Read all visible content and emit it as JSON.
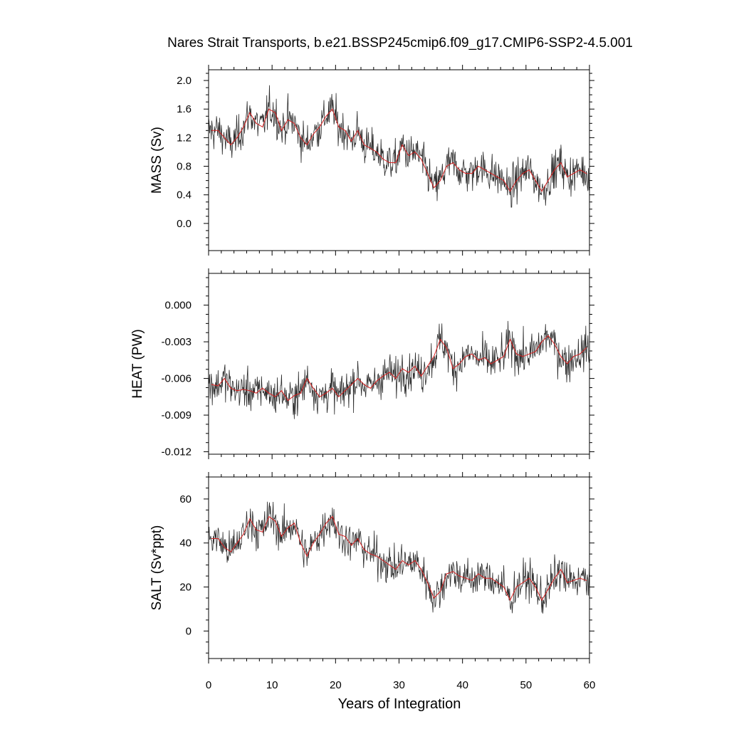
{
  "title": "Nares Strait Transports, b.e21.BSSP245cmip6.f09_g17.CMIP6-SSP2-4.5.001",
  "xlabel": "Years of Integration",
  "chart_data": [
    {
      "type": "line",
      "ylabel": "MASS (Sv)",
      "xlim": [
        0,
        60
      ],
      "ylim": [
        -0.38,
        2.15
      ],
      "xticks": [
        0,
        10,
        20,
        30,
        40,
        50,
        60
      ],
      "yticks": [
        0.0,
        0.4,
        0.8,
        1.2,
        1.6,
        2.0
      ],
      "ytick_labels": [
        "0.0",
        "0.4",
        "0.8",
        "1.2",
        "1.6",
        "2.0"
      ],
      "colors": {
        "monthly": "#2a2a2a",
        "annual": "#d62020"
      },
      "series": [
        {
          "x": [
            0.5,
            1.5,
            2.5,
            3.5,
            4.5,
            5.5,
            6.5,
            7.5,
            8.5,
            9.5,
            10.5,
            11.5,
            12.5,
            13.5,
            14.5,
            15.5,
            16.5,
            17.5,
            18.5,
            19.5,
            20.5,
            21.5,
            22.5,
            23.5,
            24.5,
            25.5,
            26.5,
            27.5,
            28.5,
            29.5,
            30.5,
            31.5,
            32.5,
            33.5,
            34.5,
            35.5,
            36.5,
            37.5,
            38.5,
            39.5,
            40.5,
            41.5,
            42.5,
            43.5,
            44.5,
            45.5,
            46.5,
            47.5,
            48.5,
            49.5,
            50.5,
            51.5,
            52.5,
            53.5,
            54.5,
            55.5,
            56.5,
            57.5,
            58.5,
            59.5
          ],
          "values": [
            1.3,
            1.3,
            1.2,
            1.1,
            1.2,
            1.35,
            1.55,
            1.4,
            1.35,
            1.6,
            1.55,
            1.3,
            1.45,
            1.4,
            1.2,
            1.1,
            1.25,
            1.35,
            1.5,
            1.6,
            1.35,
            1.3,
            1.15,
            1.3,
            1.1,
            1.05,
            1.0,
            0.9,
            0.85,
            0.85,
            1.1,
            0.95,
            1.0,
            0.9,
            0.7,
            0.5,
            0.6,
            0.8,
            0.85,
            0.75,
            0.7,
            0.7,
            0.8,
            0.75,
            0.7,
            0.65,
            0.6,
            0.45,
            0.6,
            0.7,
            0.75,
            0.6,
            0.45,
            0.6,
            0.75,
            0.85,
            0.65,
            0.7,
            0.75,
            0.7
          ]
        }
      ]
    },
    {
      "type": "line",
      "ylabel": "HEAT (PW)",
      "xlim": [
        0,
        60
      ],
      "ylim": [
        -0.0122,
        0.0026
      ],
      "xticks": [
        0,
        10,
        20,
        30,
        40,
        50,
        60
      ],
      "yticks": [
        -0.012,
        -0.009,
        -0.006,
        -0.003,
        0.0
      ],
      "ytick_labels": [
        "-0.012",
        "-0.009",
        "-0.006",
        "-0.003",
        "0.000"
      ],
      "colors": {
        "monthly": "#2a2a2a",
        "annual": "#d62020"
      },
      "series": [
        {
          "x": [
            0.5,
            1.5,
            2.5,
            3.5,
            4.5,
            5.5,
            6.5,
            7.5,
            8.5,
            9.5,
            10.5,
            11.5,
            12.5,
            13.5,
            14.5,
            15.5,
            16.5,
            17.5,
            18.5,
            19.5,
            20.5,
            21.5,
            22.5,
            23.5,
            24.5,
            25.5,
            26.5,
            27.5,
            28.5,
            29.5,
            30.5,
            31.5,
            32.5,
            33.5,
            34.5,
            35.5,
            36.5,
            37.5,
            38.5,
            39.5,
            40.5,
            41.5,
            42.5,
            43.5,
            44.5,
            45.5,
            46.5,
            47.5,
            48.5,
            49.5,
            50.5,
            51.5,
            52.5,
            53.5,
            54.5,
            55.5,
            56.5,
            57.5,
            58.5,
            59.5
          ],
          "values": [
            -0.0065,
            -0.0066,
            -0.006,
            -0.0068,
            -0.007,
            -0.0069,
            -0.007,
            -0.0072,
            -0.0068,
            -0.0072,
            -0.0075,
            -0.007,
            -0.0078,
            -0.0074,
            -0.0072,
            -0.006,
            -0.0068,
            -0.0075,
            -0.0072,
            -0.0068,
            -0.0075,
            -0.007,
            -0.0065,
            -0.006,
            -0.0065,
            -0.0068,
            -0.0062,
            -0.0058,
            -0.0055,
            -0.006,
            -0.0052,
            -0.0055,
            -0.005,
            -0.0058,
            -0.005,
            -0.0042,
            -0.0028,
            -0.0035,
            -0.0052,
            -0.0048,
            -0.0042,
            -0.004,
            -0.0045,
            -0.0043,
            -0.0048,
            -0.0045,
            -0.0042,
            -0.0028,
            -0.004,
            -0.0042,
            -0.004,
            -0.0038,
            -0.003,
            -0.0025,
            -0.0032,
            -0.0042,
            -0.0048,
            -0.0042,
            -0.004,
            -0.0035
          ]
        }
      ]
    },
    {
      "type": "line",
      "ylabel": "SALT (Sv*ppt)",
      "xlim": [
        0,
        60
      ],
      "ylim": [
        -12.5,
        70
      ],
      "xticks": [
        0,
        10,
        20,
        30,
        40,
        50,
        60
      ],
      "yticks": [
        0,
        20,
        40,
        60
      ],
      "ytick_labels": [
        "0",
        "20",
        "40",
        "60"
      ],
      "xtick_labels": [
        "0",
        "10",
        "20",
        "30",
        "40",
        "50",
        "60"
      ],
      "colors": {
        "monthly": "#2a2a2a",
        "annual": "#d62020"
      },
      "series": [
        {
          "x": [
            0.5,
            1.5,
            2.5,
            3.5,
            4.5,
            5.5,
            6.5,
            7.5,
            8.5,
            9.5,
            10.5,
            11.5,
            12.5,
            13.5,
            14.5,
            15.5,
            16.5,
            17.5,
            18.5,
            19.5,
            20.5,
            21.5,
            22.5,
            23.5,
            24.5,
            25.5,
            26.5,
            27.5,
            28.5,
            29.5,
            30.5,
            31.5,
            32.5,
            33.5,
            34.5,
            35.5,
            36.5,
            37.5,
            38.5,
            39.5,
            40.5,
            41.5,
            42.5,
            43.5,
            44.5,
            45.5,
            46.5,
            47.5,
            48.5,
            49.5,
            50.5,
            51.5,
            52.5,
            53.5,
            54.5,
            55.5,
            56.5,
            57.5,
            58.5,
            59.5
          ],
          "values": [
            42,
            42,
            38,
            36,
            40,
            44,
            51,
            46,
            45,
            52,
            50,
            43,
            47,
            49,
            40,
            34,
            40,
            44,
            49,
            52,
            44,
            43,
            39,
            42,
            37,
            35,
            34,
            32,
            30,
            28,
            32,
            30,
            32,
            28,
            22,
            15,
            18,
            26,
            27,
            25,
            24,
            23,
            26,
            24,
            24,
            22,
            20,
            14,
            20,
            22,
            24,
            20,
            14,
            19,
            24,
            28,
            22,
            23,
            24,
            23
          ]
        }
      ]
    }
  ]
}
